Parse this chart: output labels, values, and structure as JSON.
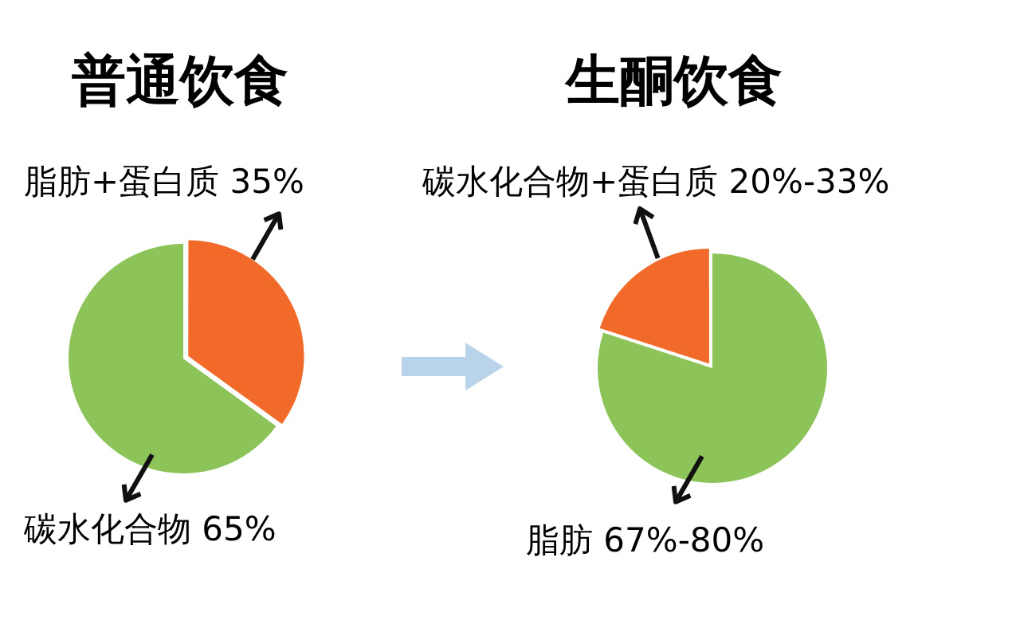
{
  "chart_data": [
    {
      "type": "pie",
      "title": "普通饮食",
      "categories": [
        "脂肪+蛋白质 35%",
        "碳水化合物 65%"
      ],
      "values": [
        35,
        65
      ],
      "colors": [
        "#f26a2a",
        "#8dc45a"
      ],
      "legend": false
    },
    {
      "type": "pie",
      "title": "生酮饮食",
      "categories": [
        "碳水化合物+蛋白质 20%-33%",
        "脂肪 67%-80%"
      ],
      "values": [
        20,
        80
      ],
      "colors": [
        "#f26a2a",
        "#8dc45a"
      ],
      "legend": false
    }
  ]
}
